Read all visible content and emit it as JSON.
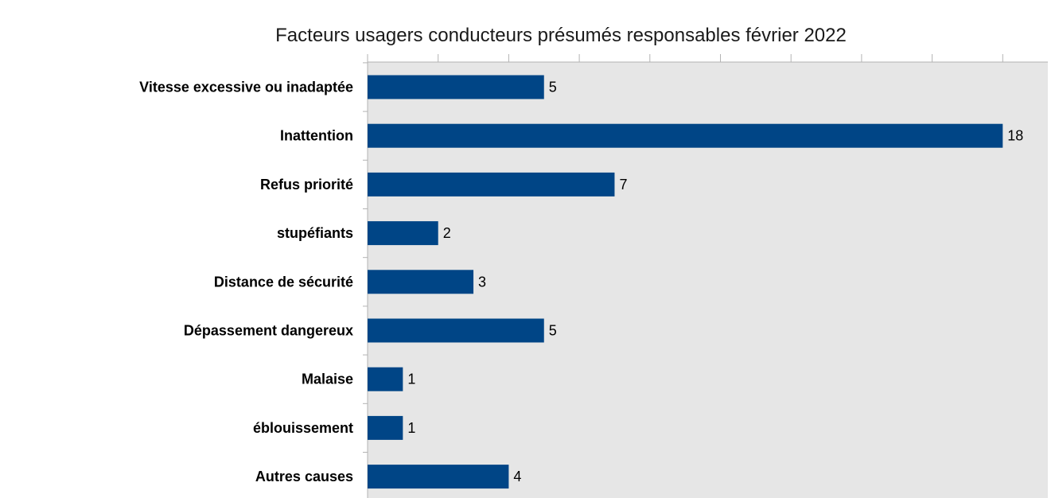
{
  "chart_data": {
    "type": "bar",
    "orientation": "horizontal",
    "title": "Facteurs usagers conducteurs présumés responsables février 2022",
    "categories": [
      "Vitesse excessive ou inadaptée",
      "Inattention",
      "Refus priorité",
      "stupéfiants",
      "Distance de sécurité",
      "Dépassement dangereux",
      "Malaise",
      "éblouissement",
      "Autres causes"
    ],
    "values": [
      5,
      18,
      7,
      2,
      3,
      5,
      1,
      1,
      4
    ],
    "xlim": [
      0,
      19
    ],
    "x_tick_step": 2,
    "xlabel": "",
    "ylabel": "",
    "legend": "none",
    "grid": false,
    "colors": {
      "bar": "#004586",
      "plot_background": "#e6e6e6",
      "axis": "#b3b3b3"
    }
  }
}
